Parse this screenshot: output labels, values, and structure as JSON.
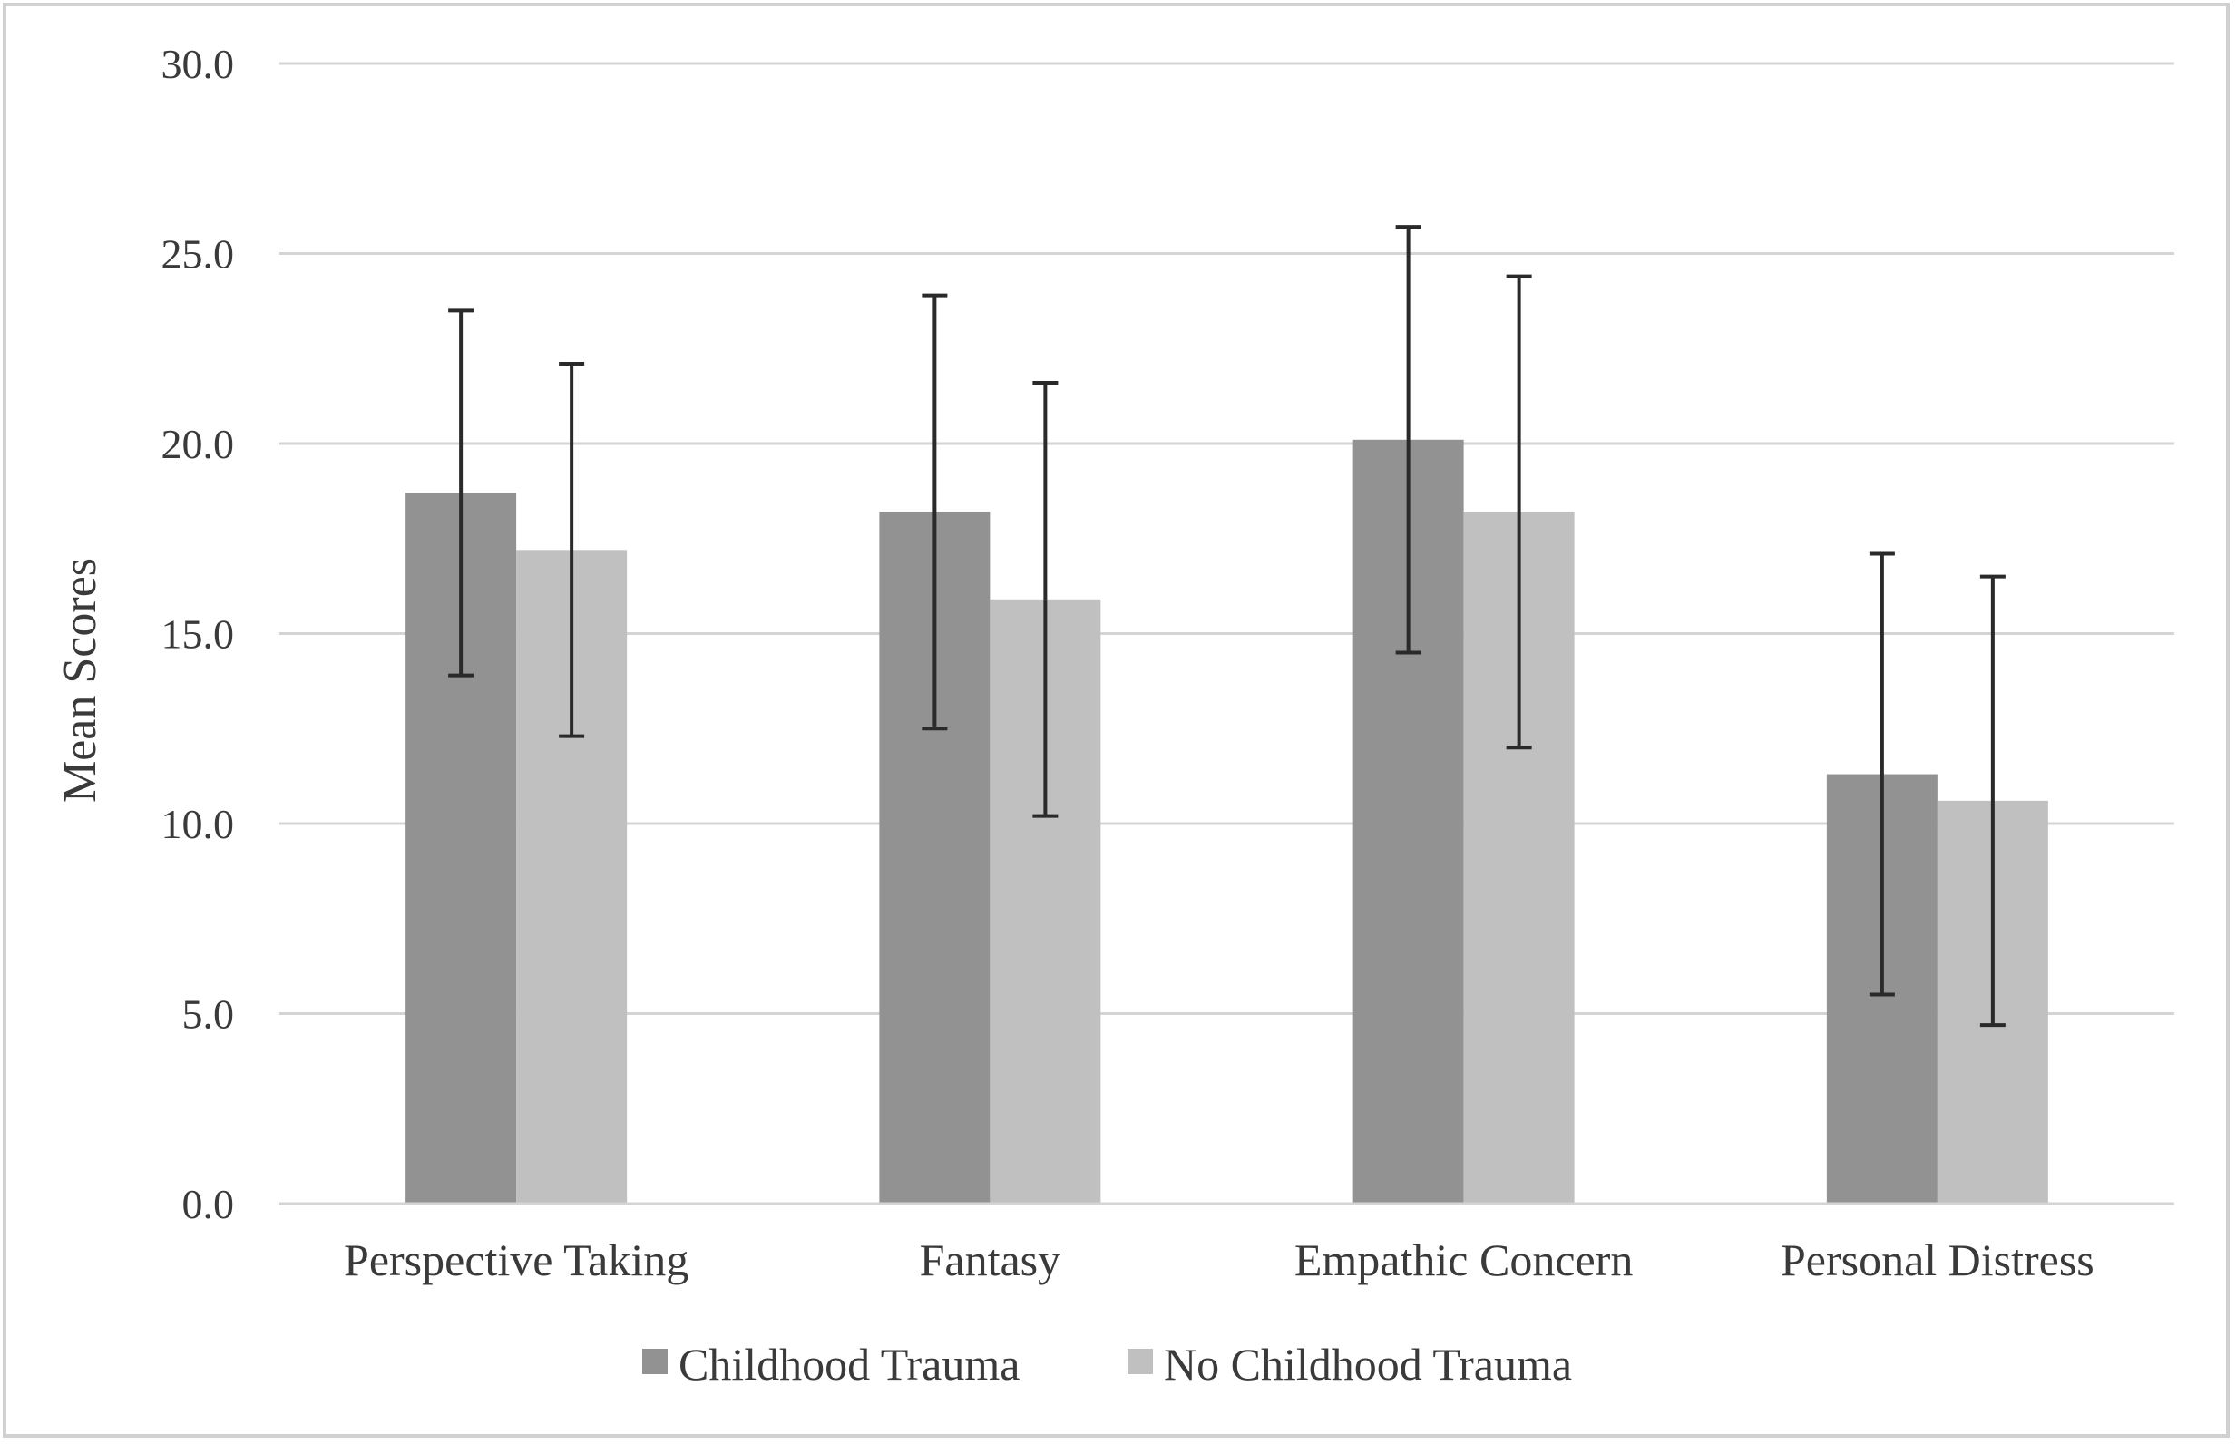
{
  "chart_data": {
    "type": "bar",
    "title": "",
    "xlabel": "",
    "ylabel": "Mean Scores",
    "ylim": [
      0,
      30
    ],
    "yticks": [
      "0.0",
      "5.0",
      "10.0",
      "15.0",
      "20.0",
      "25.0",
      "30.0"
    ],
    "grid": true,
    "legend_position": "bottom",
    "categories": [
      "Perspective Taking",
      "Fantasy",
      "Empathic Concern",
      "Personal Distress"
    ],
    "series": [
      {
        "name": "Childhood Trauma",
        "color": "#929292",
        "values": [
          18.7,
          18.2,
          20.1,
          11.3
        ],
        "error": [
          4.8,
          5.7,
          5.6,
          5.8
        ]
      },
      {
        "name": "No Childhood Trauma",
        "color": "#c0c0c0",
        "values": [
          17.2,
          15.9,
          18.2,
          10.6
        ],
        "error": [
          4.9,
          5.7,
          6.2,
          5.9
        ]
      }
    ]
  }
}
